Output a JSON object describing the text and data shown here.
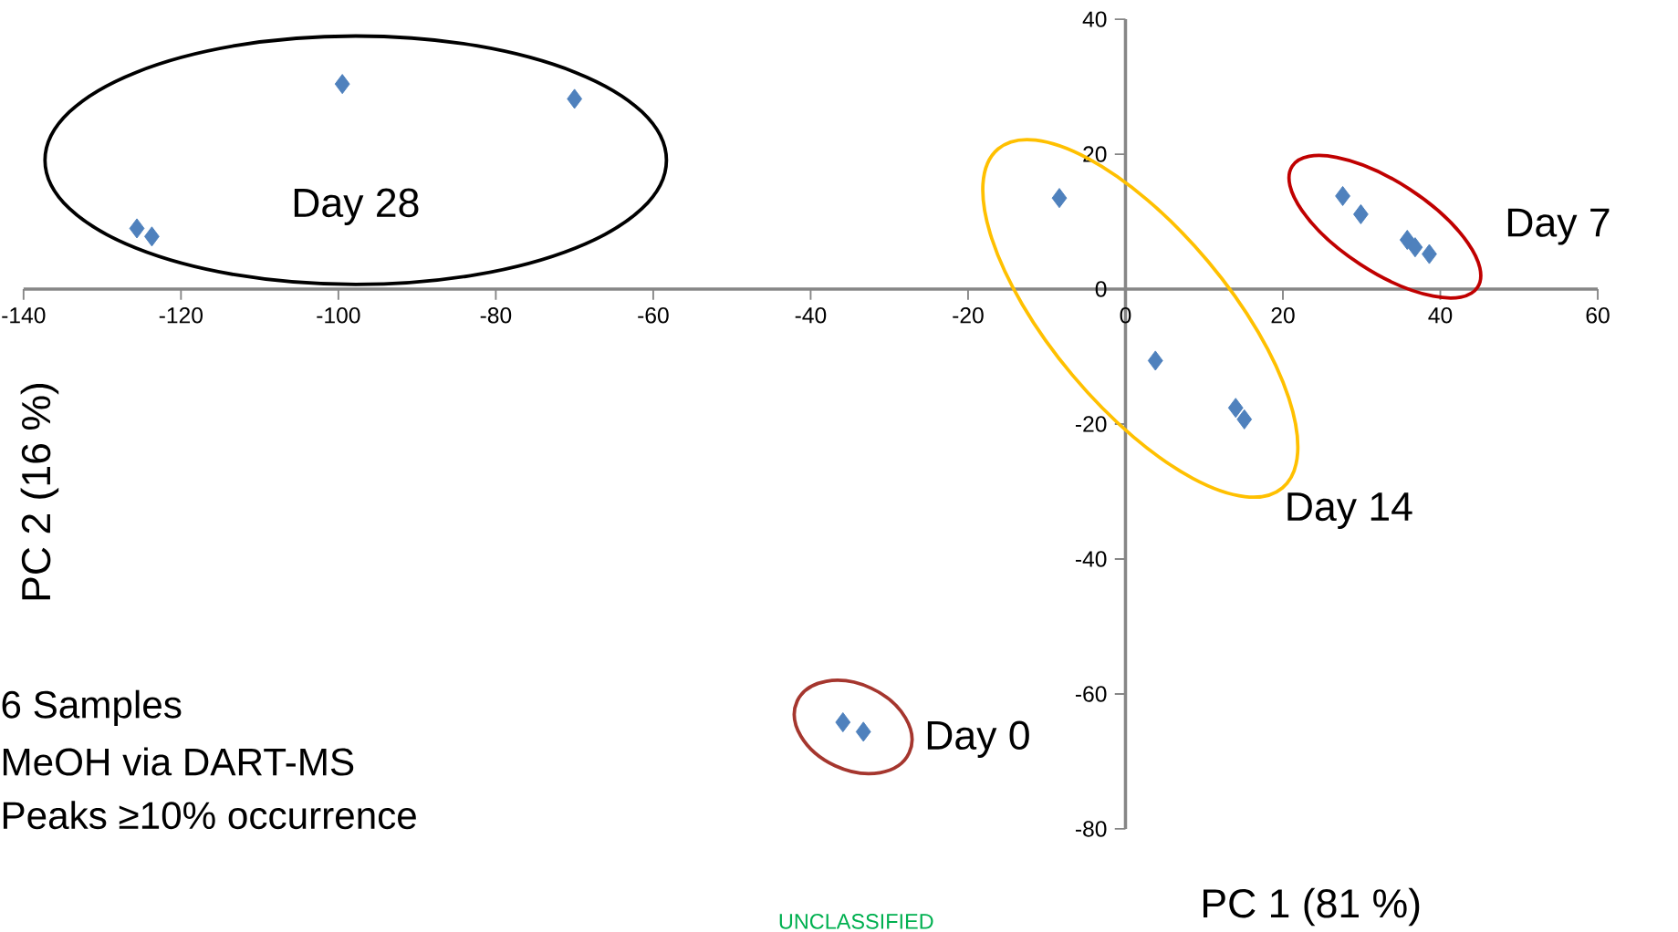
{
  "chart_data": {
    "type": "scatter",
    "xlabel": "PC 1 (81 %)",
    "ylabel": "PC 2 (16 %)",
    "marker": "diamond",
    "xlim": [
      -140,
      60
    ],
    "ylim": [
      -80,
      40
    ],
    "xticks": [
      -140,
      -120,
      -100,
      -80,
      -60,
      -40,
      -20,
      0,
      20,
      40,
      60
    ],
    "yticks": [
      -80,
      -60,
      -40,
      -20,
      0,
      20,
      40
    ],
    "series": [
      {
        "name": "Day 28",
        "color": "#4f81bd",
        "x": [
          -125.6,
          -123.7,
          -99.5,
          -70.0
        ],
        "values": [
          9.0,
          7.8,
          30.4,
          28.2
        ]
      },
      {
        "name": "Day 14",
        "color": "#4f81bd",
        "x": [
          -8.4,
          3.8,
          14.0,
          15.1
        ],
        "values": [
          13.5,
          -10.6,
          -17.6,
          -19.3
        ]
      },
      {
        "name": "Day 7",
        "color": "#4f81bd",
        "x": [
          27.6,
          29.9,
          35.8,
          36.8,
          38.6
        ],
        "values": [
          13.8,
          11.1,
          7.3,
          6.2,
          5.2
        ]
      },
      {
        "name": "Day 0",
        "color": "#4f81bd",
        "x": [
          -35.9,
          -33.3
        ],
        "values": [
          -64.2,
          -65.6
        ]
      }
    ],
    "annotations": [
      "6 Samples",
      "MeOH via DART-MS",
      "Peaks ≥10% occurrence",
      "UNCLASSIFIED"
    ]
  }
}
